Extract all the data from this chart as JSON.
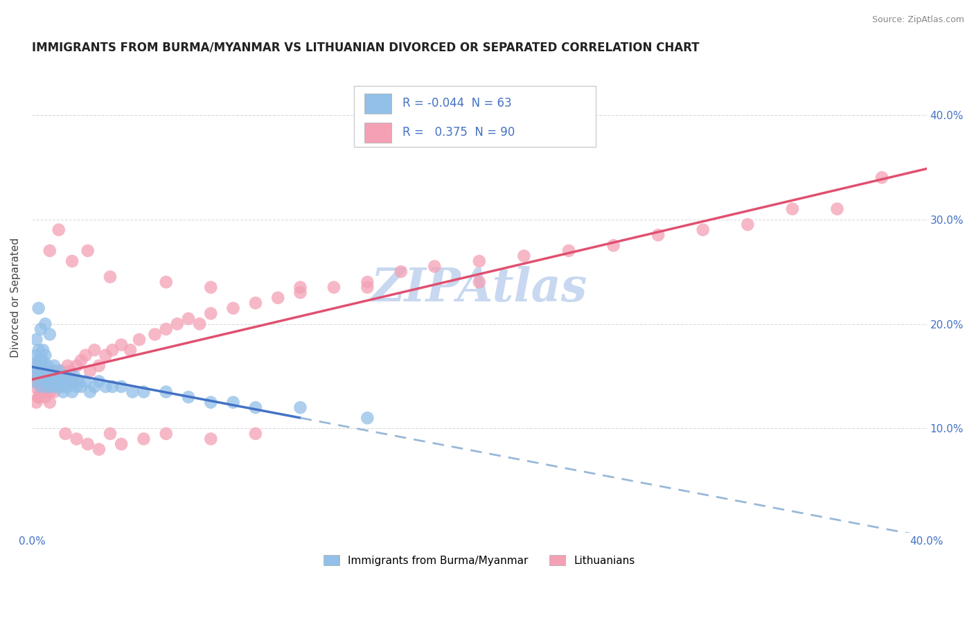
{
  "title": "IMMIGRANTS FROM BURMA/MYANMAR VS LITHUANIAN DIVORCED OR SEPARATED CORRELATION CHART",
  "source": "Source: ZipAtlas.com",
  "ylabel": "Divorced or Separated",
  "xlim": [
    0.0,
    0.4
  ],
  "ylim": [
    0.0,
    0.45
  ],
  "yticks_right": [
    0.1,
    0.2,
    0.3,
    0.4
  ],
  "yticks_right_labels": [
    "10.0%",
    "20.0%",
    "30.0%",
    "40.0%"
  ],
  "legend_r1": "-0.044",
  "legend_n1": "63",
  "legend_r2": "0.375",
  "legend_n2": "90",
  "legend_label1": "Immigrants from Burma/Myanmar",
  "legend_label2": "Lithuanians",
  "color_blue": "#92C0E8",
  "color_pink": "#F4A0B5",
  "line_color_blue": "#4472C4",
  "line_color_pink": "#E05070",
  "line_color_blue_dash": "#99B8D8",
  "watermark": "ZIPAtlas",
  "watermark_color": "#C8D8F0",
  "background_color": "#FFFFFF",
  "grid_color": "#CCCCCC",
  "title_fontsize": 12,
  "axis_label_fontsize": 11,
  "tick_fontsize": 11,
  "blue_scatter_x": [
    0.001,
    0.001,
    0.002,
    0.002,
    0.003,
    0.003,
    0.003,
    0.004,
    0.004,
    0.004,
    0.005,
    0.005,
    0.005,
    0.006,
    0.006,
    0.006,
    0.007,
    0.007,
    0.007,
    0.008,
    0.008,
    0.009,
    0.009,
    0.01,
    0.01,
    0.011,
    0.011,
    0.012,
    0.012,
    0.013,
    0.013,
    0.014,
    0.014,
    0.015,
    0.015,
    0.016,
    0.017,
    0.018,
    0.019,
    0.02,
    0.021,
    0.022,
    0.024,
    0.026,
    0.028,
    0.03,
    0.033,
    0.036,
    0.04,
    0.045,
    0.05,
    0.06,
    0.07,
    0.08,
    0.09,
    0.1,
    0.12,
    0.15,
    0.002,
    0.003,
    0.004,
    0.006,
    0.008
  ],
  "blue_scatter_y": [
    0.155,
    0.145,
    0.17,
    0.16,
    0.165,
    0.155,
    0.175,
    0.15,
    0.14,
    0.165,
    0.155,
    0.165,
    0.175,
    0.145,
    0.155,
    0.17,
    0.15,
    0.14,
    0.16,
    0.145,
    0.155,
    0.15,
    0.14,
    0.145,
    0.16,
    0.15,
    0.14,
    0.145,
    0.155,
    0.14,
    0.15,
    0.135,
    0.145,
    0.14,
    0.15,
    0.14,
    0.145,
    0.135,
    0.15,
    0.14,
    0.145,
    0.14,
    0.145,
    0.135,
    0.14,
    0.145,
    0.14,
    0.14,
    0.14,
    0.135,
    0.135,
    0.135,
    0.13,
    0.125,
    0.125,
    0.12,
    0.12,
    0.11,
    0.185,
    0.215,
    0.195,
    0.2,
    0.19
  ],
  "pink_scatter_x": [
    0.001,
    0.001,
    0.002,
    0.002,
    0.003,
    0.003,
    0.004,
    0.004,
    0.005,
    0.005,
    0.006,
    0.006,
    0.007,
    0.007,
    0.008,
    0.008,
    0.009,
    0.01,
    0.01,
    0.011,
    0.012,
    0.013,
    0.014,
    0.015,
    0.016,
    0.017,
    0.018,
    0.02,
    0.022,
    0.024,
    0.026,
    0.028,
    0.03,
    0.033,
    0.036,
    0.04,
    0.044,
    0.048,
    0.055,
    0.06,
    0.065,
    0.07,
    0.075,
    0.08,
    0.09,
    0.1,
    0.11,
    0.12,
    0.135,
    0.15,
    0.165,
    0.18,
    0.2,
    0.22,
    0.24,
    0.26,
    0.28,
    0.3,
    0.32,
    0.34,
    0.36,
    0.38,
    0.002,
    0.003,
    0.004,
    0.005,
    0.006,
    0.008,
    0.01,
    0.012,
    0.015,
    0.02,
    0.025,
    0.03,
    0.035,
    0.04,
    0.05,
    0.06,
    0.08,
    0.1,
    0.012,
    0.008,
    0.018,
    0.025,
    0.035,
    0.06,
    0.08,
    0.12,
    0.15,
    0.2
  ],
  "pink_scatter_y": [
    0.15,
    0.14,
    0.145,
    0.16,
    0.155,
    0.13,
    0.14,
    0.165,
    0.145,
    0.155,
    0.135,
    0.15,
    0.14,
    0.155,
    0.135,
    0.15,
    0.145,
    0.14,
    0.155,
    0.145,
    0.14,
    0.155,
    0.145,
    0.15,
    0.16,
    0.155,
    0.145,
    0.16,
    0.165,
    0.17,
    0.155,
    0.175,
    0.16,
    0.17,
    0.175,
    0.18,
    0.175,
    0.185,
    0.19,
    0.195,
    0.2,
    0.205,
    0.2,
    0.21,
    0.215,
    0.22,
    0.225,
    0.23,
    0.235,
    0.24,
    0.25,
    0.255,
    0.26,
    0.265,
    0.27,
    0.275,
    0.285,
    0.29,
    0.295,
    0.31,
    0.31,
    0.34,
    0.125,
    0.13,
    0.135,
    0.14,
    0.13,
    0.125,
    0.135,
    0.14,
    0.095,
    0.09,
    0.085,
    0.08,
    0.095,
    0.085,
    0.09,
    0.095,
    0.09,
    0.095,
    0.29,
    0.27,
    0.26,
    0.27,
    0.245,
    0.24,
    0.235,
    0.235,
    0.235,
    0.24
  ]
}
